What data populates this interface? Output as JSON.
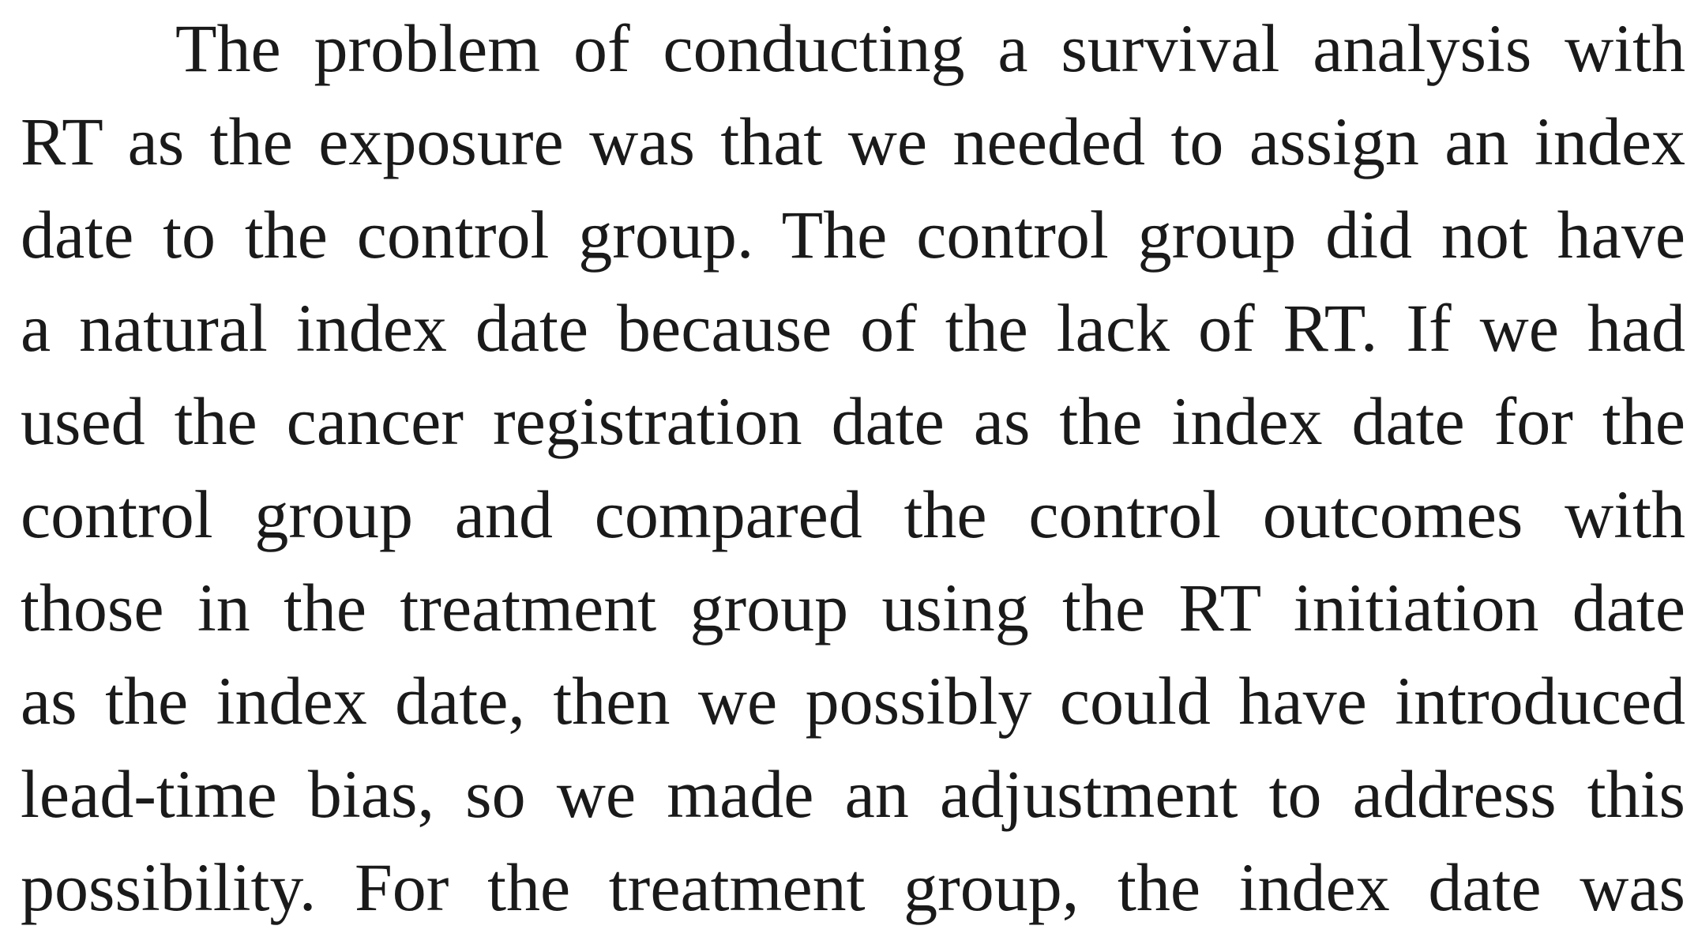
{
  "paragraph": {
    "lines": [
      "The problem of conducting a survival analysis with",
      "RT as the exposure was that we needed to assign an index",
      "date to the control group. The control group did not have",
      "a natural index date because of the lack of RT. If we had",
      "used the cancer registration date as the index date for the",
      "control group and compared the control outcomes with",
      "those in the treatment group using the RT initiation date",
      "as the index date, then we possibly could have introduced",
      "lead-time bias, so we made an adjustment to address this",
      "possibility. For the treatment group, the index date was"
    ]
  }
}
